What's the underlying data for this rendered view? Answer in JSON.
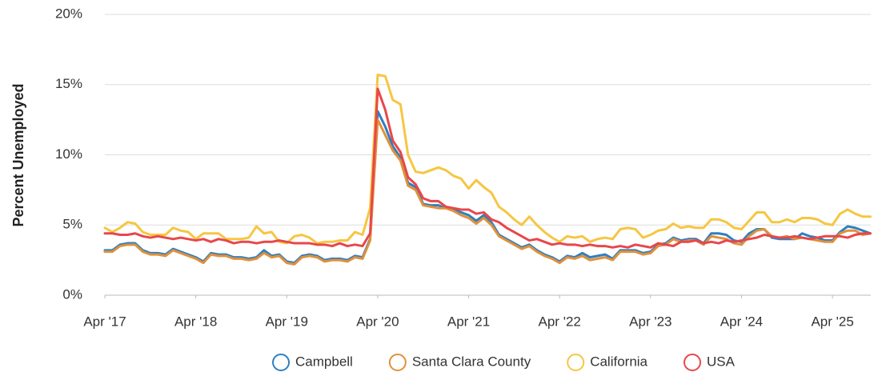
{
  "chart_data": {
    "type": "line",
    "ylabel": "Percent Unemployed",
    "x": [
      "2017-04",
      "2017-05",
      "2017-06",
      "2017-07",
      "2017-08",
      "2017-09",
      "2017-10",
      "2017-11",
      "2017-12",
      "2018-01",
      "2018-02",
      "2018-03",
      "2018-04",
      "2018-05",
      "2018-06",
      "2018-07",
      "2018-08",
      "2018-09",
      "2018-10",
      "2018-11",
      "2018-12",
      "2019-01",
      "2019-02",
      "2019-03",
      "2019-04",
      "2019-05",
      "2019-06",
      "2019-07",
      "2019-08",
      "2019-09",
      "2019-10",
      "2019-11",
      "2019-12",
      "2020-01",
      "2020-02",
      "2020-03",
      "2020-04",
      "2020-05",
      "2020-06",
      "2020-07",
      "2020-08",
      "2020-09",
      "2020-10",
      "2020-11",
      "2020-12",
      "2021-01",
      "2021-02",
      "2021-03",
      "2021-04",
      "2021-05",
      "2021-06",
      "2021-07",
      "2021-08",
      "2021-09",
      "2021-10",
      "2021-11",
      "2021-12",
      "2022-01",
      "2022-02",
      "2022-03",
      "2022-04",
      "2022-05",
      "2022-06",
      "2022-07",
      "2022-08",
      "2022-09",
      "2022-10",
      "2022-11",
      "2022-12",
      "2023-01",
      "2023-02",
      "2023-03",
      "2023-04",
      "2023-05",
      "2023-06",
      "2023-07",
      "2023-08",
      "2023-09",
      "2023-10",
      "2023-11",
      "2023-12",
      "2024-01",
      "2024-02",
      "2024-03",
      "2024-04",
      "2024-05",
      "2024-06",
      "2024-07",
      "2024-08",
      "2024-09",
      "2024-10",
      "2024-11",
      "2024-12",
      "2025-01",
      "2025-02",
      "2025-03",
      "2025-04",
      "2025-05",
      "2025-06",
      "2025-07",
      "2025-08",
      "2025-09"
    ],
    "series": [
      {
        "name": "Campbell",
        "color": "#2f7fc1",
        "values": [
          3.2,
          3.2,
          3.6,
          3.7,
          3.7,
          3.2,
          3.0,
          3.0,
          2.9,
          3.3,
          3.1,
          2.9,
          2.7,
          2.4,
          3.0,
          2.9,
          2.9,
          2.7,
          2.7,
          2.6,
          2.7,
          3.2,
          2.8,
          2.9,
          2.4,
          2.3,
          2.8,
          2.9,
          2.8,
          2.5,
          2.6,
          2.6,
          2.5,
          2.8,
          2.7,
          4.0,
          13.1,
          12.0,
          10.6,
          9.8,
          8.0,
          7.7,
          6.5,
          6.4,
          6.4,
          6.2,
          6.1,
          5.9,
          5.7,
          5.3,
          5.7,
          5.2,
          4.3,
          4.0,
          3.7,
          3.4,
          3.6,
          3.2,
          2.9,
          2.7,
          2.4,
          2.8,
          2.7,
          3.0,
          2.7,
          2.8,
          2.9,
          2.6,
          3.2,
          3.2,
          3.2,
          3.0,
          3.1,
          3.6,
          3.7,
          4.1,
          3.9,
          4.0,
          4.0,
          3.7,
          4.4,
          4.4,
          4.3,
          3.9,
          3.8,
          4.4,
          4.7,
          4.7,
          4.1,
          4.0,
          4.0,
          4.0,
          4.4,
          4.2,
          4.1,
          3.9,
          3.9,
          4.5,
          4.9,
          4.8,
          4.6,
          4.4
        ]
      },
      {
        "name": "Santa Clara County",
        "color": "#e0913a",
        "values": [
          3.1,
          3.1,
          3.5,
          3.6,
          3.6,
          3.1,
          2.9,
          2.9,
          2.8,
          3.2,
          3.0,
          2.8,
          2.6,
          2.3,
          2.9,
          2.8,
          2.8,
          2.6,
          2.6,
          2.5,
          2.6,
          3.0,
          2.7,
          2.8,
          2.3,
          2.2,
          2.7,
          2.8,
          2.7,
          2.4,
          2.5,
          2.5,
          2.4,
          2.7,
          2.6,
          3.9,
          12.5,
          11.4,
          10.3,
          9.6,
          7.8,
          7.5,
          6.4,
          6.3,
          6.2,
          6.2,
          6.0,
          5.7,
          5.5,
          5.1,
          5.5,
          5.0,
          4.2,
          3.9,
          3.6,
          3.3,
          3.5,
          3.1,
          2.8,
          2.6,
          2.3,
          2.7,
          2.6,
          2.8,
          2.5,
          2.6,
          2.7,
          2.5,
          3.1,
          3.1,
          3.1,
          2.9,
          3.0,
          3.5,
          3.6,
          4.0,
          3.8,
          3.9,
          3.9,
          3.6,
          4.2,
          4.1,
          4.0,
          3.7,
          3.6,
          4.2,
          4.6,
          4.7,
          4.2,
          4.1,
          4.2,
          4.0,
          4.1,
          4.0,
          3.9,
          3.8,
          3.8,
          4.4,
          4.6,
          4.6,
          4.3,
          4.4
        ]
      },
      {
        "name": "California",
        "color": "#f6c642",
        "values": [
          4.8,
          4.5,
          4.8,
          5.2,
          5.1,
          4.5,
          4.3,
          4.3,
          4.3,
          4.8,
          4.6,
          4.5,
          4.0,
          4.4,
          4.4,
          4.4,
          4.0,
          4.0,
          4.0,
          4.1,
          4.9,
          4.4,
          4.5,
          3.8,
          3.7,
          4.2,
          4.3,
          4.1,
          3.7,
          3.8,
          3.8,
          3.9,
          3.9,
          4.5,
          4.3,
          6.2,
          15.7,
          15.6,
          13.9,
          13.6,
          10.0,
          8.8,
          8.7,
          8.9,
          9.1,
          8.9,
          8.5,
          8.3,
          7.6,
          8.2,
          7.7,
          7.3,
          6.3,
          5.9,
          5.4,
          5.0,
          5.6,
          5.0,
          4.5,
          4.1,
          3.8,
          4.2,
          4.1,
          4.2,
          3.8,
          4.0,
          4.1,
          4.0,
          4.7,
          4.8,
          4.7,
          4.1,
          4.3,
          4.6,
          4.7,
          5.1,
          4.8,
          4.9,
          4.8,
          4.8,
          5.4,
          5.4,
          5.2,
          4.8,
          4.7,
          5.3,
          5.9,
          5.9,
          5.2,
          5.2,
          5.4,
          5.2,
          5.5,
          5.5,
          5.4,
          5.1,
          5.0,
          5.8,
          6.1,
          5.8,
          5.6,
          5.6
        ]
      },
      {
        "name": "USA",
        "color": "#e8474a",
        "values": [
          4.4,
          4.4,
          4.3,
          4.3,
          4.4,
          4.2,
          4.1,
          4.2,
          4.1,
          4.0,
          4.1,
          4.0,
          3.9,
          4.0,
          3.8,
          4.0,
          3.9,
          3.7,
          3.8,
          3.8,
          3.7,
          3.8,
          3.8,
          3.9,
          3.8,
          3.7,
          3.7,
          3.7,
          3.6,
          3.6,
          3.5,
          3.7,
          3.5,
          3.6,
          3.5,
          4.4,
          14.7,
          13.2,
          11.0,
          10.2,
          8.4,
          7.9,
          6.9,
          6.7,
          6.7,
          6.3,
          6.2,
          6.1,
          6.1,
          5.8,
          5.9,
          5.4,
          5.2,
          4.8,
          4.5,
          4.2,
          3.9,
          4.0,
          3.8,
          3.6,
          3.7,
          3.6,
          3.6,
          3.5,
          3.6,
          3.5,
          3.5,
          3.4,
          3.5,
          3.4,
          3.6,
          3.5,
          3.4,
          3.7,
          3.6,
          3.5,
          3.8,
          3.8,
          3.9,
          3.7,
          3.8,
          3.7,
          3.9,
          3.8,
          3.9,
          4.0,
          4.1,
          4.3,
          4.2,
          4.1,
          4.1,
          4.2,
          4.1,
          4.0,
          4.1,
          4.2,
          4.2,
          4.2,
          4.1,
          4.3,
          4.4,
          4.4
        ]
      }
    ],
    "ylim": [
      0,
      20
    ],
    "yticks": [
      {
        "value": 0,
        "label": "0%"
      },
      {
        "value": 5,
        "label": "5%"
      },
      {
        "value": 10,
        "label": "10%"
      },
      {
        "value": 15,
        "label": "15%"
      },
      {
        "value": 20,
        "label": "20%"
      }
    ],
    "xticks": [
      {
        "value": "2017-04",
        "label": "Apr '17"
      },
      {
        "value": "2018-04",
        "label": "Apr '18"
      },
      {
        "value": "2019-04",
        "label": "Apr '19"
      },
      {
        "value": "2020-04",
        "label": "Apr '20"
      },
      {
        "value": "2021-04",
        "label": "Apr '21"
      },
      {
        "value": "2022-04",
        "label": "Apr '22"
      },
      {
        "value": "2023-04",
        "label": "Apr '23"
      },
      {
        "value": "2024-04",
        "label": "Apr '24"
      },
      {
        "value": "2025-04",
        "label": "Apr '25"
      }
    ],
    "grid": true,
    "legend": "bottom"
  }
}
